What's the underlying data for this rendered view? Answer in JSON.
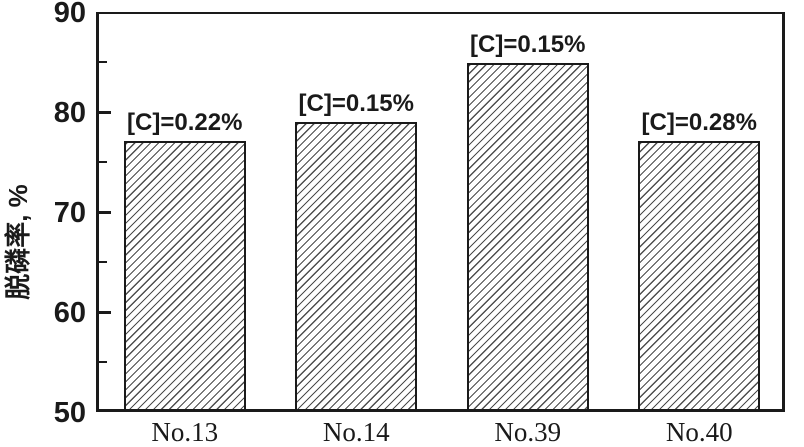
{
  "chart_data": {
    "type": "bar",
    "title": "",
    "categories": [
      "No.13",
      "No.14",
      "No.39",
      "No.40"
    ],
    "values": [
      77.1,
      79,
      84.9,
      77.1
    ],
    "bar_labels": [
      "[C]=0.22%",
      "[C]=0.15%",
      "[C]=0.15%",
      "[C]=0.28%"
    ],
    "xlabel": "",
    "ylabel": "脱磷率, %",
    "ylim": [
      50,
      90
    ],
    "y_major_ticks": [
      50,
      60,
      70,
      80,
      90
    ],
    "y_minor_ticks": [
      55,
      65,
      75,
      85
    ],
    "grid": false,
    "legend": false,
    "frame": true,
    "bar_fill": "diagonal-hatch",
    "hatch_direction": "forward-slash",
    "colors": {
      "background": "#ffffff",
      "axis": "#1a1a1a",
      "text": "#1a1a1a",
      "bar_edge": "#1a1a1a",
      "hatch_line": "#4d4d4d",
      "bar_face": "#ffffff"
    }
  }
}
